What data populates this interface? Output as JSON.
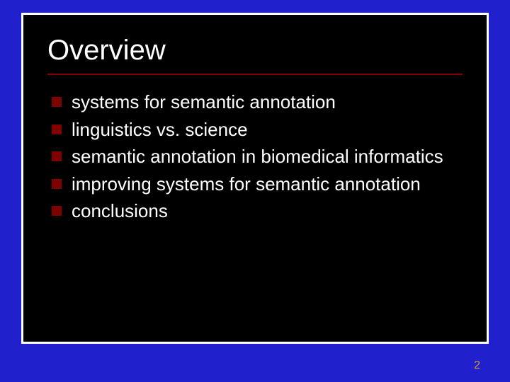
{
  "slide": {
    "title": "Overview",
    "title_fontsize": 40,
    "title_color": "#ffffff",
    "underline_color": "#800000",
    "background_color": "#000000",
    "frame_border_color": "#ffffff",
    "outer_background_color": "#2020cc",
    "bullets": [
      {
        "text": "systems for semantic annotation"
      },
      {
        "text": "linguistics vs. science"
      },
      {
        "text": "semantic annotation in biomedical informatics"
      },
      {
        "text": "improving systems for semantic annotation"
      },
      {
        "text": "conclusions"
      }
    ],
    "bullet_marker_color": "#800000",
    "bullet_text_color": "#ffffff",
    "bullet_fontsize": 26,
    "page_number": "2",
    "page_number_color": "#cc9933"
  }
}
